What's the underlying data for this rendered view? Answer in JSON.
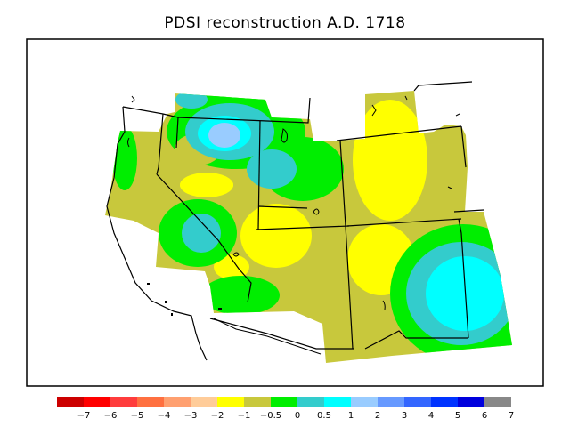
{
  "title": "PDSI reconstruction A.D. 1718",
  "legend": {
    "bins": [
      {
        "color": "#cc0000"
      },
      {
        "color": "#ff0000"
      },
      {
        "color": "#ff3c3c"
      },
      {
        "color": "#ff7040"
      },
      {
        "color": "#ffa070"
      },
      {
        "color": "#ffcc99"
      },
      {
        "color": "#ffff00"
      },
      {
        "color": "#c8c83c"
      },
      {
        "color": "#00ee00"
      },
      {
        "color": "#33cccc"
      },
      {
        "color": "#00ffff"
      },
      {
        "color": "#99ccff"
      },
      {
        "color": "#6699ff"
      },
      {
        "color": "#3366ff"
      },
      {
        "color": "#0033ff"
      },
      {
        "color": "#0000dd"
      },
      {
        "color": "#888888"
      }
    ],
    "tick_labels": [
      "−7",
      "−6",
      "−5",
      "−4",
      "−3",
      "−2",
      "−1",
      "−0.5",
      "0",
      "0.5",
      "1",
      "2",
      "3",
      "4",
      "5",
      "6",
      "7"
    ]
  },
  "map": {
    "variable": "PDSI",
    "year": "A.D. 1718",
    "region": "western United States",
    "colors": {
      "background_fill": "#c8c83c",
      "yellow": "#ffff00",
      "green": "#00ee00",
      "teal": "#33cccc",
      "cyan": "#00ffff",
      "light_blue": "#99ccff",
      "border": "#000000"
    }
  }
}
